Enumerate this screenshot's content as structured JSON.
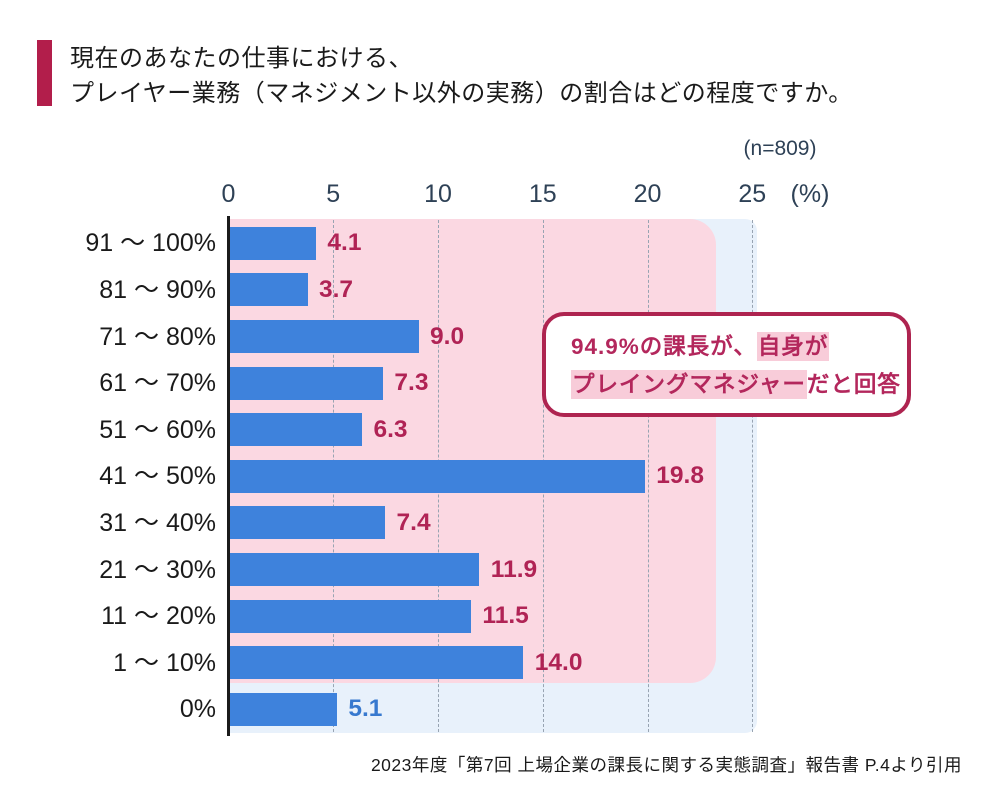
{
  "header": {
    "title_line1": "現在のあなたの仕事における、",
    "title_line2": "プレイヤー業務（マネジメント以外の実務）の割合はどの程度ですか。",
    "sample_size": "(n=809)"
  },
  "chart_data": {
    "type": "bar",
    "orientation": "horizontal",
    "title": "現在のあなたの仕事における、プレイヤー業務（マネジメント以外の実務）の割合はどの程度ですか。",
    "categories": [
      "91 〜 100%",
      "81 〜 90%",
      "71 〜 80%",
      "61 〜 70%",
      "51 〜 60%",
      "41 〜 50%",
      "31 〜 40%",
      "21 〜 30%",
      "11 〜 20%",
      "1 〜 10%",
      "0%"
    ],
    "values": [
      4.1,
      3.7,
      9.0,
      7.3,
      6.3,
      19.8,
      7.4,
      11.9,
      11.5,
      14.0,
      5.1
    ],
    "value_labels": [
      "4.1",
      "3.7",
      "9.0",
      "7.3",
      "6.3",
      "19.8",
      "7.4",
      "11.9",
      "11.5",
      "14.0",
      "5.1"
    ],
    "x_ticks": [
      0,
      5,
      10,
      15,
      20,
      25
    ],
    "x_unit": "(%)",
    "xlim": [
      0,
      25
    ],
    "grid": "dashed vertical gridlines at every 5%",
    "legend": "none",
    "annotation": "rows 91〜100% through 1〜10% (total 94.9%) covered by pink highlight region; 0% row outside it",
    "colors": {
      "bar": "#3e82dc",
      "value": "#b02355",
      "value_zero": "#3779cf",
      "pink_region": "#fbd8e2",
      "blue_region": "#e8f1fb",
      "accent": "#b21e4b",
      "callout_border": "#ae2450",
      "callout_text": "#b3275c",
      "callout_highlight": "#f8ccd9",
      "axis_label": "#2e4156",
      "gridline": "#98a4b2"
    }
  },
  "callout": {
    "line1_prefix": "94.9%の課長が、",
    "line1_highlight": "自身が",
    "line2_highlight": "プレイングマネジャー",
    "line2_suffix": "だと回答"
  },
  "footer": {
    "citation": "2023年度「第7回 上場企業の課長に関する実態調査」報告書 P.4より引用"
  }
}
